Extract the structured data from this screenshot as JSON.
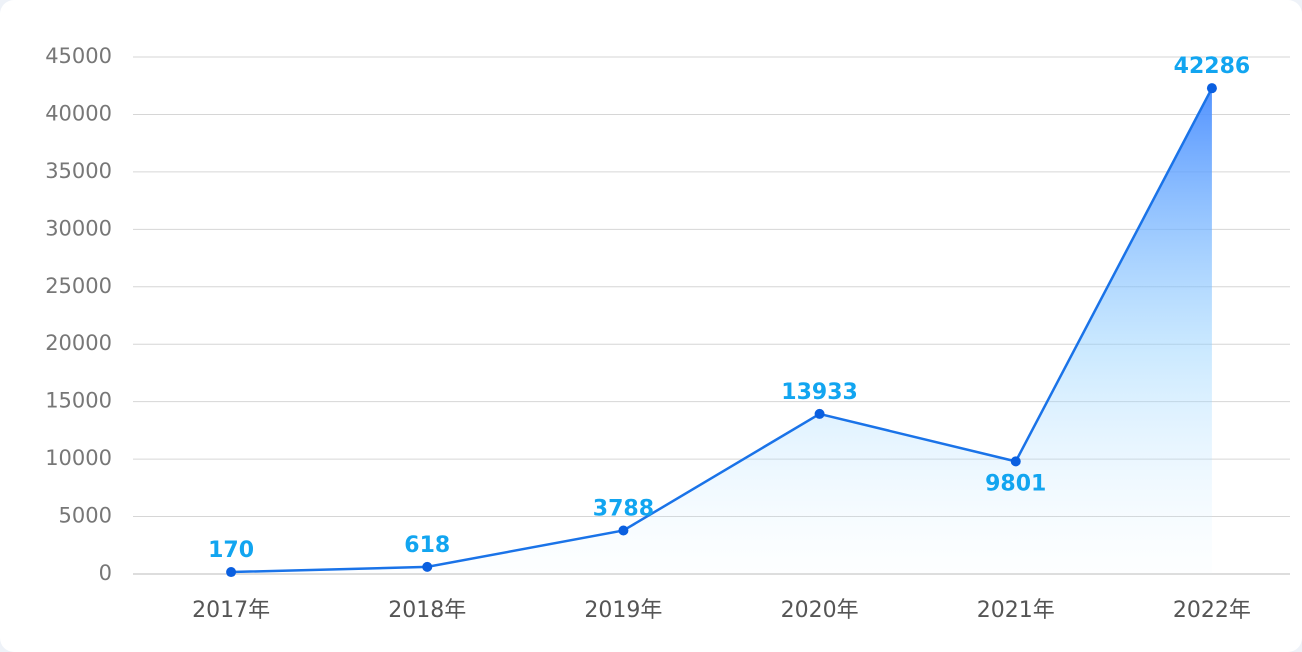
{
  "chart_data": {
    "type": "line",
    "categories": [
      "2017年",
      "2018年",
      "2019年",
      "2020年",
      "2021年",
      "2022年"
    ],
    "values": [
      170,
      618,
      3788,
      13933,
      9801,
      42286
    ],
    "color": "#1a73e8",
    "label_color": "#12a5f0",
    "ylim": [
      0,
      45000
    ],
    "yticks": [
      0,
      5000,
      10000,
      15000,
      20000,
      25000,
      30000,
      35000,
      40000,
      45000
    ],
    "grid": true
  }
}
